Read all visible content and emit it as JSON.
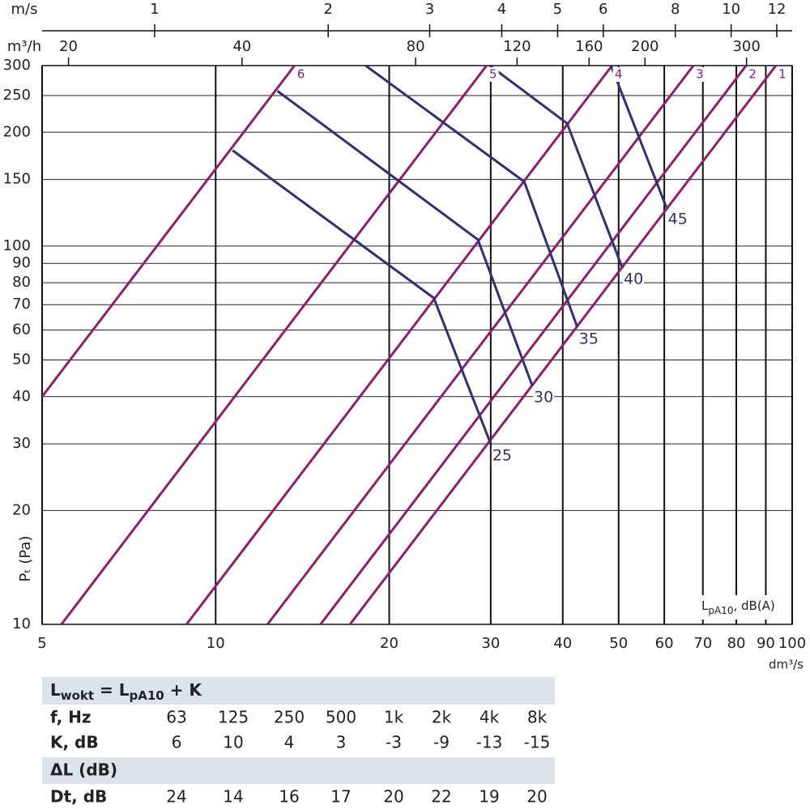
{
  "chart_data": {
    "type": "line",
    "xscale": "log",
    "yscale": "log",
    "xlabel": "dm³/s",
    "ylabel": "Pₜ (Pa)",
    "xlim": [
      5,
      100
    ],
    "ylim": [
      10,
      300
    ],
    "xticks": [
      5,
      10,
      20,
      30,
      40,
      50,
      60,
      70,
      80,
      90,
      100
    ],
    "yticks": [
      10,
      20,
      30,
      40,
      50,
      60,
      70,
      80,
      90,
      100,
      150,
      200,
      250,
      300
    ],
    "grid": true,
    "top_axes": [
      {
        "label": "m/s",
        "lim": [
          0.638,
          12.76
        ],
        "ticks": [
          1,
          2,
          3,
          4,
          5,
          6,
          8,
          10,
          12
        ]
      },
      {
        "label": "m³/h",
        "lim": [
          18,
          360
        ],
        "ticks": [
          20,
          40,
          80,
          120,
          160,
          200,
          300
        ]
      }
    ],
    "level_label": [
      {
        "text": "L"
      },
      {
        "text": "pA10",
        "sub": true
      },
      {
        "text": ", dB(A)"
      }
    ],
    "series": [
      {
        "name": "6",
        "color": "#8b1f6e",
        "x": [
          5,
          13.7
        ],
        "values": [
          40,
          300
        ]
      },
      {
        "name": "5",
        "color": "#8b1f6e",
        "x": [
          5.4,
          29.5
        ],
        "values": [
          10,
          300
        ]
      },
      {
        "name": "4",
        "color": "#8b1f6e",
        "x": [
          8.9,
          48.7
        ],
        "values": [
          10,
          300
        ]
      },
      {
        "name": "3",
        "color": "#8b1f6e",
        "x": [
          12.3,
          67.4
        ],
        "values": [
          10,
          300
        ]
      },
      {
        "name": "2",
        "color": "#8b1f6e",
        "x": [
          15.2,
          83.2
        ],
        "values": [
          10,
          300
        ]
      },
      {
        "name": "1",
        "color": "#8b1f6e",
        "x": [
          17.1,
          93.7
        ],
        "values": [
          10,
          300
        ]
      },
      {
        "name": "25",
        "color": "#33306e",
        "x": [
          10.7,
          23.9,
          30
        ],
        "values": [
          179,
          72.9,
          30
        ]
      },
      {
        "name": "30",
        "color": "#33306e",
        "x": [
          12.8,
          28.5,
          35.4
        ],
        "values": [
          257,
          104,
          42.8
        ]
      },
      {
        "name": "35",
        "color": "#33306e",
        "x": [
          18.2,
          34.3,
          42.4
        ],
        "values": [
          300,
          148,
          61
        ]
      },
      {
        "name": "40",
        "color": "#33306e",
        "x": [
          29.9,
          40.7,
          50.7
        ],
        "values": [
          300,
          211,
          87.9
        ]
      },
      {
        "name": "45",
        "color": "#33306e",
        "x": [
          48.5,
          60.5
        ],
        "values": [
          300,
          126.6
        ]
      }
    ]
  },
  "table": {
    "formula": [
      {
        "text": "L"
      },
      {
        "text": "wokt",
        "sub": true
      },
      {
        "text": " = L"
      },
      {
        "text": "pA10",
        "sub": true
      },
      {
        "text": " + K"
      }
    ],
    "rows": [
      [
        "f, Hz",
        63,
        125,
        250,
        500,
        "1k",
        "2k",
        "4k",
        "8k"
      ],
      [
        "K, dB",
        6,
        10,
        4,
        3,
        -3,
        -9,
        -13,
        -15
      ]
    ],
    "section": "ΔL (dB)",
    "rows2": [
      [
        "Dt, dB",
        24,
        14,
        16,
        17,
        20,
        22,
        19,
        20
      ]
    ]
  }
}
